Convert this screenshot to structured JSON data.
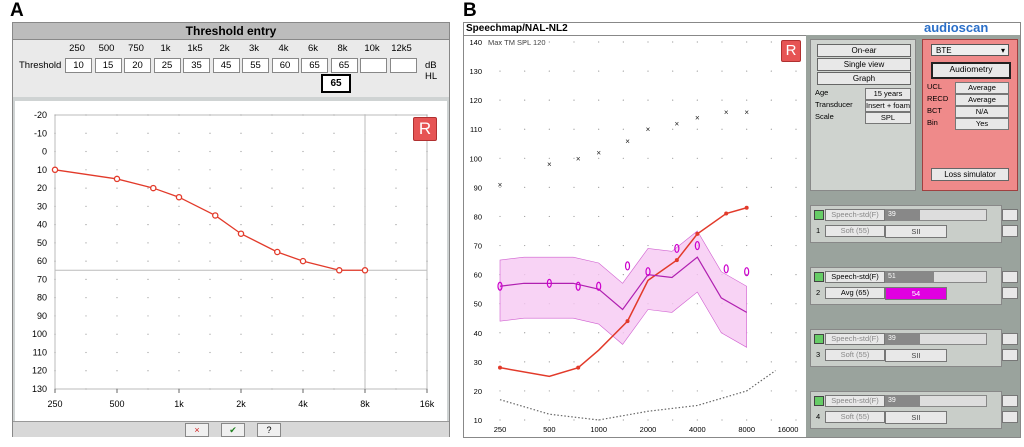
{
  "labels": {
    "a": "A",
    "b": "B"
  },
  "panelA": {
    "title": "Threshold entry",
    "row_label": "Threshold",
    "unit": "dB HL",
    "freq_headers": [
      "250",
      "500",
      "750",
      "1k",
      "1k5",
      "2k",
      "3k",
      "4k",
      "6k",
      "8k",
      "10k",
      "12k5"
    ],
    "threshold_values": [
      "10",
      "15",
      "20",
      "25",
      "35",
      "45",
      "55",
      "60",
      "65",
      "65",
      "",
      ""
    ],
    "active_entry": "65",
    "badge": "R",
    "y_ticks": [
      "-20",
      "-10",
      "0",
      "10",
      "20",
      "30",
      "40",
      "50",
      "60",
      "70",
      "80",
      "90",
      "100",
      "110",
      "120",
      "130"
    ],
    "x_ticks": [
      "250",
      "500",
      "1k",
      "2k",
      "4k",
      "8k",
      "16k"
    ],
    "buttons": {
      "cancel": "×",
      "ok": "✔",
      "help": "?"
    },
    "chart_data": {
      "type": "line",
      "x": [
        250,
        500,
        750,
        1000,
        1500,
        2000,
        3000,
        4000,
        6000,
        8000
      ],
      "y": [
        10,
        15,
        20,
        25,
        35,
        45,
        55,
        60,
        65,
        65
      ],
      "ylim": [
        -20,
        130
      ],
      "y_inverted": true,
      "x_scale": "log",
      "reference_line": 65,
      "colors": {
        "line": "#e23a2a"
      }
    }
  },
  "panelB": {
    "title": "Speechmap/NAL-NL2",
    "subtitle": "Max TM SPL 120",
    "brand": "audioscan",
    "badge": "R",
    "y_ticks": [
      "140",
      "130",
      "120",
      "110",
      "100",
      "90",
      "80",
      "70",
      "60",
      "50",
      "40",
      "30",
      "20",
      "10"
    ],
    "x_ticks": [
      "250",
      "500",
      "1000",
      "2000",
      "4000",
      "8000",
      "16000"
    ],
    "buttons": {
      "on_ear": "On-ear",
      "single_view": "Single view",
      "graph": "Graph"
    },
    "info": [
      {
        "label": "Age",
        "value": "15 years"
      },
      {
        "label": "Transducer",
        "value": "Insert + foam"
      },
      {
        "label": "Scale",
        "value": "SPL"
      }
    ],
    "device": {
      "type_select": "BTE",
      "audiometry": "Audiometry",
      "fields": [
        {
          "label": "UCL",
          "value": "Average"
        },
        {
          "label": "RECD",
          "value": "Average"
        },
        {
          "label": "BCT",
          "value": "N/A"
        },
        {
          "label": "Bin",
          "value": "Yes"
        }
      ],
      "loss_sim": "Loss simulator"
    },
    "tests": [
      {
        "num": "1",
        "stim": "Speech-std(F)",
        "level": "Soft (55)",
        "val": "39",
        "extra": "SII",
        "active": false
      },
      {
        "num": "2",
        "stim": "Speech-std(F)",
        "level": "Avg (65)",
        "val": "51",
        "extra": "54",
        "active": true
      },
      {
        "num": "3",
        "stim": "Speech-std(F)",
        "level": "Soft (55)",
        "val": "39",
        "extra": "SII",
        "active": false
      },
      {
        "num": "4",
        "stim": "Speech-std(F)",
        "level": "Soft (55)",
        "val": "39",
        "extra": "SII",
        "active": false
      }
    ],
    "chart_data": {
      "type": "line",
      "x_scale": "log",
      "ylim": [
        10,
        140
      ],
      "series": [
        {
          "role": "threshold",
          "x": [
            250,
            500,
            750,
            1000,
            1500,
            2000,
            3000,
            4000,
            6000,
            8000
          ],
          "y": [
            28,
            25,
            28,
            34,
            44,
            58,
            65,
            74,
            81,
            83
          ],
          "color": "#e23a2a"
        },
        {
          "role": "ucl",
          "x": [
            250,
            500,
            750,
            1000,
            1500,
            2000,
            3000,
            4000,
            6000,
            8000
          ],
          "y": [
            91,
            98,
            100,
            102,
            106,
            110,
            112,
            114,
            116,
            116
          ],
          "color": "#222222"
        },
        {
          "role": "ltass",
          "x": [
            250,
            350,
            500,
            700,
            1000,
            1400,
            2000,
            2800,
            4000,
            5600,
            8000
          ],
          "y": [
            56,
            57,
            57,
            57,
            55,
            48,
            60,
            59,
            66,
            52,
            47
          ],
          "color": "#b020b0"
        },
        {
          "role": "noise",
          "x": [
            250,
            500,
            1000,
            2000,
            4000,
            8000,
            12000
          ],
          "y": [
            17,
            12,
            10,
            13,
            15,
            20,
            27
          ],
          "color": "#666666"
        }
      ],
      "targets": {
        "x": [
          250,
          500,
          750,
          1000,
          1500,
          2000,
          3000,
          4000,
          6000,
          8000
        ],
        "y": [
          56,
          57,
          56,
          56,
          63,
          61,
          69,
          70,
          62,
          61
        ],
        "color": "#cc00cc"
      }
    }
  }
}
